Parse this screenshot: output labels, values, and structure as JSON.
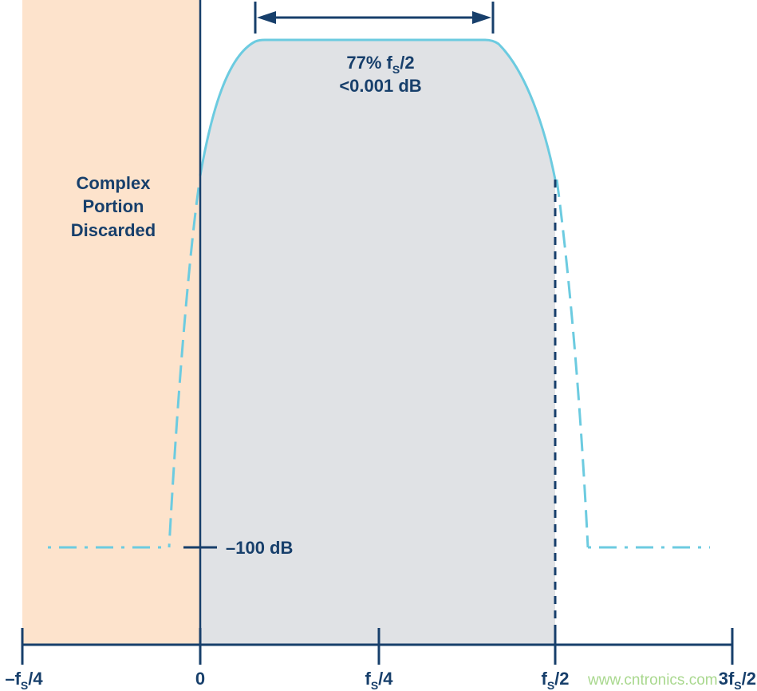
{
  "colors": {
    "discarded_region": "#fde3cc",
    "passband_fill": "#e0e2e5",
    "filter_curve": "#6ccbe0",
    "axis": "#173f6b",
    "watermark": "#a9d88e"
  },
  "region_label": [
    "Complex",
    "Portion",
    "Discarded"
  ],
  "passband_label": {
    "line1_main": "77% f",
    "line1_sub": "S",
    "line1_tail": "/2",
    "line2": "<0.001 dB"
  },
  "level_label": "–100 dB",
  "x_ticks": [
    {
      "pre": "–f",
      "sub": "S",
      "post": "/4"
    },
    {
      "pre": "0",
      "sub": "",
      "post": ""
    },
    {
      "pre": "f",
      "sub": "S",
      "post": "/4"
    },
    {
      "pre": "f",
      "sub": "S",
      "post": "/2"
    },
    {
      "pre": "3f",
      "sub": "S",
      "post": "/2"
    }
  ],
  "watermark": "www.cntronics.com"
}
